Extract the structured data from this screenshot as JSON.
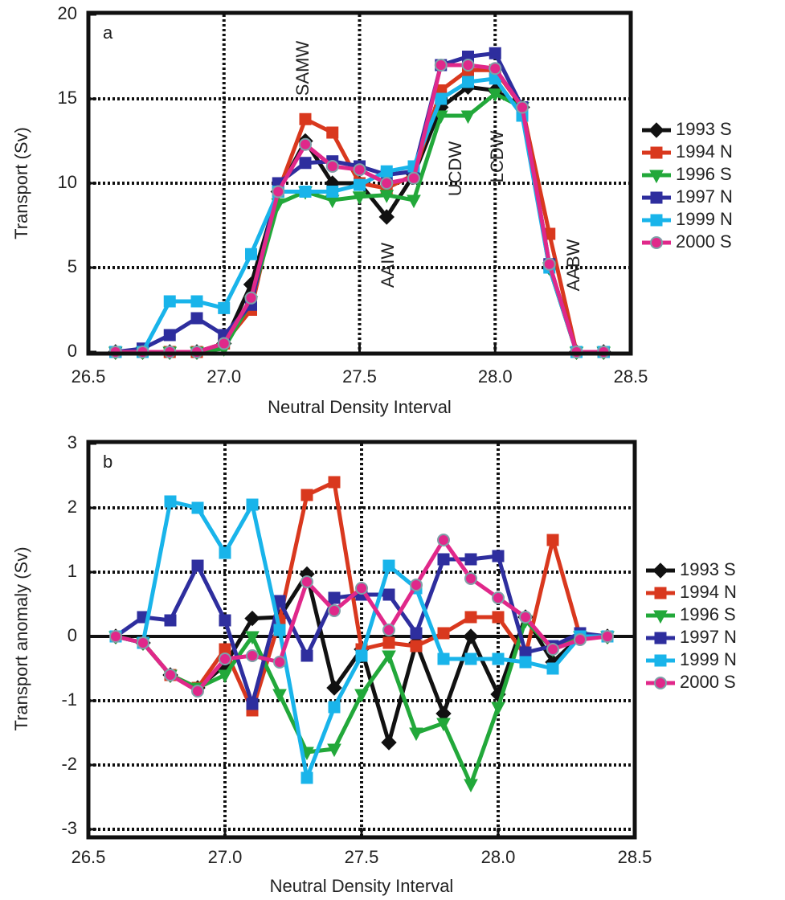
{
  "chart_data": [
    {
      "type": "line",
      "panel_label": "a",
      "xlabel": "Neutral Density Interval",
      "ylabel": "Transport (Sv)",
      "x": [
        26.6,
        26.7,
        26.8,
        26.9,
        27.0,
        27.1,
        27.2,
        27.3,
        27.4,
        27.5,
        27.6,
        27.7,
        27.8,
        27.9,
        28.0,
        28.1,
        28.2,
        28.3,
        28.4
      ],
      "xlim": [
        26.5,
        28.5
      ],
      "xticks": [
        26.5,
        {
          "value": 27,
          "label": "27.0"
        },
        27.5,
        {
          "value": 28,
          "label": "28.0"
        },
        28.5
      ],
      "ylim": [
        0,
        20
      ],
      "yticks": [
        0,
        5,
        10,
        15,
        20
      ],
      "grid": true,
      "zero_line": false,
      "annotations": [
        "SAMW",
        "AAIW",
        "UCDW",
        "LCDW",
        "AABW"
      ],
      "series": [
        {
          "name": "1993 S",
          "color": "#111111",
          "marker": "diamond",
          "values": [
            0,
            0,
            0,
            0,
            0.5,
            4,
            9.5,
            12.5,
            10,
            10,
            8,
            10.5,
            14.5,
            15.7,
            15.5,
            14.5,
            5,
            0,
            0
          ]
        },
        {
          "name": "1994 N",
          "color": "#d9381e",
          "marker": "square",
          "values": [
            0,
            0,
            0,
            0,
            0.5,
            2.5,
            9.5,
            13.8,
            13,
            10,
            9.7,
            10.5,
            15.5,
            16.7,
            16.7,
            14.5,
            7,
            0,
            0
          ]
        },
        {
          "name": "1996 S",
          "color": "#22a83a",
          "marker": "triangle",
          "values": [
            0,
            0,
            0,
            0,
            0.2,
            3,
            8.8,
            9.5,
            9,
            9.2,
            9.3,
            9,
            14,
            14,
            15.3,
            14.5,
            5,
            0,
            0
          ]
        },
        {
          "name": "1997 N",
          "color": "#2e2e9e",
          "marker": "square",
          "values": [
            0,
            0.2,
            1,
            2,
            1,
            2.8,
            10,
            11.2,
            11.3,
            11,
            10.5,
            10.7,
            17,
            17.5,
            17.7,
            14.5,
            5.2,
            0,
            0
          ]
        },
        {
          "name": "1999 N",
          "color": "#19b4ea",
          "marker": "square",
          "values": [
            0,
            0,
            3,
            3,
            2.6,
            5.8,
            9.5,
            9.5,
            9.5,
            9.9,
            10.7,
            11,
            15,
            16,
            16.2,
            14,
            5,
            0,
            0
          ]
        },
        {
          "name": "2000 S",
          "color": "#e0288a",
          "marker": "circle",
          "values": [
            0,
            0,
            0,
            0,
            0.5,
            3.2,
            9.5,
            12.3,
            11,
            10.8,
            10,
            10.3,
            17,
            17,
            16.8,
            14.5,
            5.2,
            0,
            0
          ]
        }
      ]
    },
    {
      "type": "line",
      "panel_label": "b",
      "xlabel": "Neutral Density Interval",
      "ylabel": "Transport anomaly (Sv)",
      "x": [
        26.6,
        26.7,
        26.8,
        26.9,
        27.0,
        27.1,
        27.2,
        27.3,
        27.4,
        27.5,
        27.6,
        27.7,
        27.8,
        27.9,
        28.0,
        28.1,
        28.2,
        28.3,
        28.4
      ],
      "xlim": [
        26.5,
        28.5
      ],
      "xticks": [
        26.5,
        {
          "value": 27,
          "label": "27.0"
        },
        27.5,
        {
          "value": 28,
          "label": "28.0"
        },
        28.5
      ],
      "ylim": [
        -3.1,
        3
      ],
      "yticks": [
        -3,
        -2,
        -1,
        0,
        1,
        2,
        3
      ],
      "grid": true,
      "zero_line": true,
      "series": [
        {
          "name": "1993 S",
          "color": "#111111",
          "marker": "diamond",
          "values": [
            0,
            -0.1,
            -0.6,
            -0.8,
            -0.45,
            0.28,
            0.3,
            0.97,
            -0.8,
            -0.2,
            -1.65,
            -0.1,
            -1.2,
            0,
            -0.9,
            0.3,
            -0.4,
            0,
            0
          ]
        },
        {
          "name": "1994 N",
          "color": "#d9381e",
          "marker": "square",
          "values": [
            0,
            -0.1,
            -0.6,
            -0.8,
            -0.2,
            -1.15,
            0.25,
            2.2,
            2.4,
            -0.2,
            -0.1,
            -0.15,
            0.05,
            0.3,
            0.3,
            -0.3,
            1.5,
            0,
            0
          ]
        },
        {
          "name": "1996 S",
          "color": "#22a83a",
          "marker": "triangle",
          "values": [
            0,
            -0.1,
            -0.6,
            -0.8,
            -0.6,
            0,
            -0.9,
            -1.8,
            -1.75,
            -0.9,
            -0.3,
            -1.5,
            -1.35,
            -2.3,
            -1.1,
            0.25,
            -0.2,
            0,
            0
          ]
        },
        {
          "name": "1997 N",
          "color": "#2e2e9e",
          "marker": "square",
          "values": [
            0,
            0.3,
            0.25,
            1.1,
            0.25,
            -1.05,
            0.55,
            -0.3,
            0.6,
            0.65,
            0.65,
            0.05,
            1.2,
            1.2,
            1.25,
            -0.25,
            -0.15,
            0.05,
            0
          ]
        },
        {
          "name": "1999 N",
          "color": "#19b4ea",
          "marker": "square",
          "values": [
            0,
            -0.1,
            2.1,
            2,
            1.3,
            2.05,
            0.1,
            -2.2,
            -1.1,
            -0.3,
            1.1,
            0.75,
            -0.35,
            -0.35,
            -0.35,
            -0.4,
            -0.5,
            0,
            0
          ]
        },
        {
          "name": "2000 S",
          "color": "#e0288a",
          "marker": "circle",
          "values": [
            0,
            -0.1,
            -0.6,
            -0.85,
            -0.35,
            -0.3,
            -0.4,
            0.85,
            0.4,
            0.75,
            0.1,
            0.8,
            1.5,
            0.9,
            0.6,
            0.3,
            -0.2,
            -0.05,
            0
          ]
        }
      ]
    }
  ]
}
